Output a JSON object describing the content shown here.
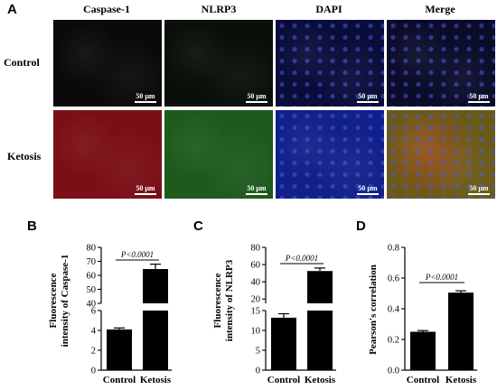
{
  "figure": {
    "panel_labels": {
      "A": "A",
      "B": "B",
      "C": "C",
      "D": "D"
    },
    "column_headers": [
      "Caspase-1",
      "NLRP3",
      "DAPI",
      "Merge"
    ],
    "row_headers": [
      "Control",
      "Ketosis"
    ],
    "scale_bar_label": "50 μm",
    "image_colors": {
      "control": [
        "#0a0a0a",
        "#0a0f0a",
        "#0a0c3a",
        "#0a0c2a"
      ],
      "ketosis": [
        "#7a1016",
        "#1e5a1e",
        "#12208a",
        "#6a5a1a"
      ]
    }
  },
  "chart_data": [
    {
      "type": "bar",
      "panel": "B",
      "categories": [
        "Control",
        "Ketosis"
      ],
      "values": [
        4.1,
        64.5
      ],
      "errors": [
        0.15,
        3.5
      ],
      "ylabel": "Fluorescence intensity of Caspase-1",
      "axis_break": true,
      "lower_range": [
        0,
        6
      ],
      "upper_range": [
        40,
        80
      ],
      "lower_ticks": [
        "0",
        "2",
        "4",
        "6"
      ],
      "upper_ticks": [
        "40",
        "50",
        "60",
        "70",
        "80"
      ],
      "annotation": "P<0.0001",
      "bar_color": "#000000"
    },
    {
      "type": "bar",
      "panel": "C",
      "categories": [
        "Control",
        "Ketosis"
      ],
      "values": [
        13.2,
        52.5
      ],
      "errors": [
        1.0,
        3.5
      ],
      "ylabel": "Fluorescence intensity of NLRP3",
      "axis_break": true,
      "lower_range": [
        0,
        15
      ],
      "upper_range": [
        15,
        80
      ],
      "lower_ticks": [
        "0",
        "5",
        "10",
        "15"
      ],
      "upper_ticks": [
        "20",
        "40",
        "60",
        "80"
      ],
      "annotation": "P<0.0001",
      "bar_color": "#000000"
    },
    {
      "type": "bar",
      "panel": "D",
      "categories": [
        "Control",
        "Ketosis"
      ],
      "values": [
        0.25,
        0.505
      ],
      "errors": [
        0.008,
        0.012
      ],
      "ylabel": "Pearson's correlation",
      "ylim": [
        0,
        0.8
      ],
      "ticks": [
        "0.0",
        "0.2",
        "0.4",
        "0.6",
        "0.8"
      ],
      "annotation": "P<0.0001",
      "bar_color": "#000000"
    }
  ]
}
